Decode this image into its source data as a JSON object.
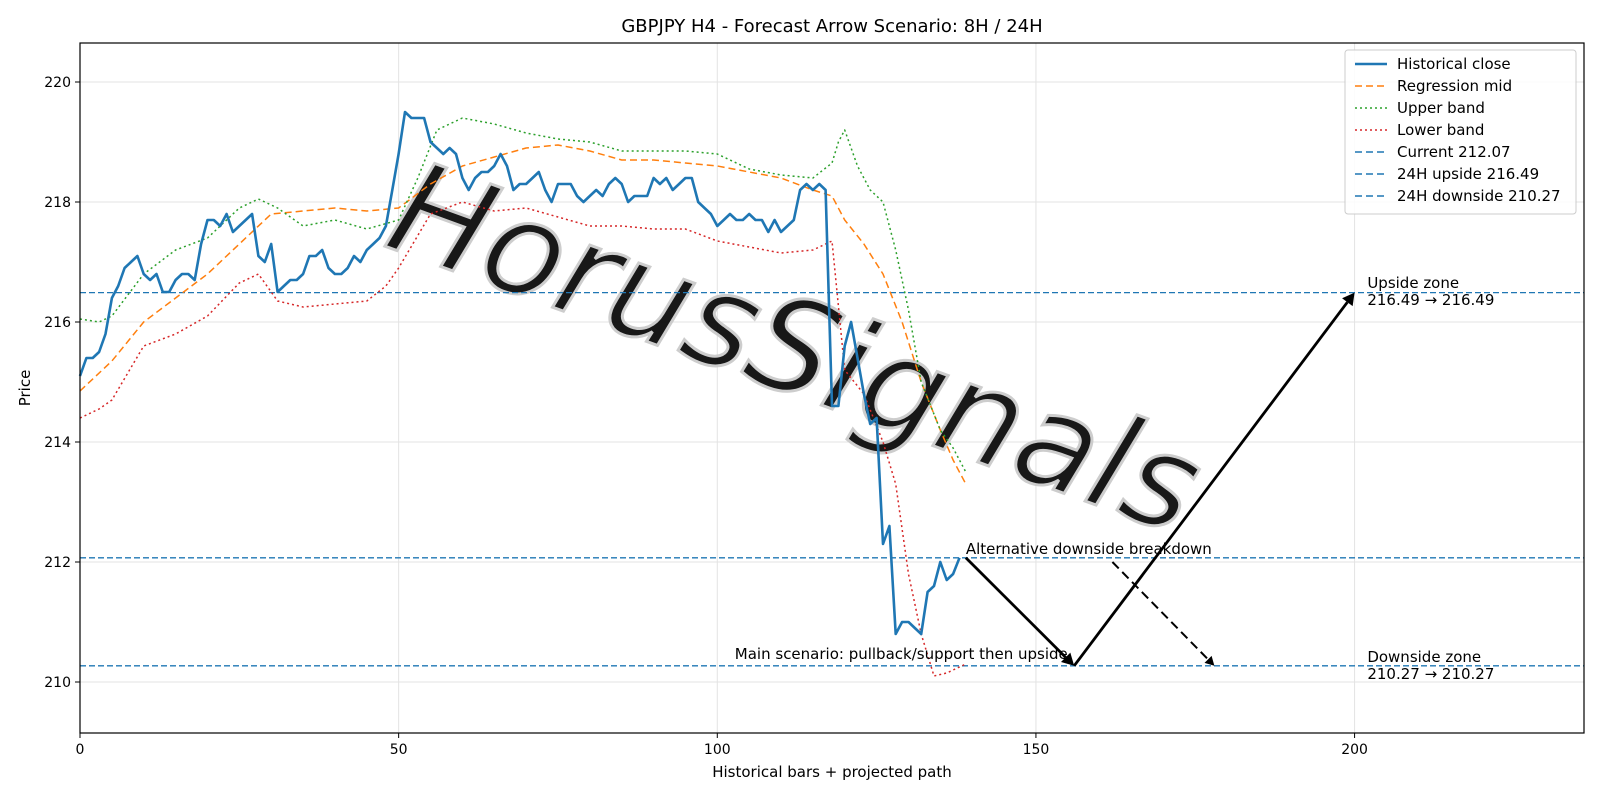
{
  "chart_data": {
    "type": "line",
    "title": "GBPJPY H4 - Forecast Arrow Scenario: 8H / 24H",
    "xlabel": "Historical bars + projected path",
    "ylabel": "Price",
    "xlim": [
      0,
      236
    ],
    "ylim": [
      209.15,
      220.65
    ],
    "xticks": [
      0,
      50,
      100,
      150,
      200
    ],
    "yticks": [
      210,
      212,
      214,
      216,
      218,
      220
    ],
    "grid": true,
    "legend_position": "top-right",
    "series": [
      {
        "name": "Historical close",
        "style": "solid",
        "color": "#1f77b4",
        "values": [
          215.1,
          215.4,
          215.4,
          215.5,
          215.8,
          216.4,
          216.6,
          216.9,
          217.0,
          217.1,
          216.8,
          216.7,
          216.8,
          216.5,
          216.5,
          216.7,
          216.8,
          216.8,
          216.7,
          217.3,
          217.7,
          217.7,
          217.6,
          217.8,
          217.5,
          217.6,
          217.7,
          217.8,
          217.1,
          217.0,
          217.3,
          216.5,
          216.6,
          216.7,
          216.7,
          216.8,
          217.1,
          217.1,
          217.2,
          216.9,
          216.8,
          216.8,
          216.9,
          217.1,
          217.0,
          217.2,
          217.3,
          217.4,
          217.6,
          218.2,
          218.8,
          219.5,
          219.4,
          219.4,
          219.4,
          219.0,
          218.9,
          218.8,
          218.9,
          218.8,
          218.4,
          218.2,
          218.4,
          218.5,
          218.5,
          218.6,
          218.8,
          218.6,
          218.2,
          218.3,
          218.3,
          218.4,
          218.5,
          218.2,
          218.0,
          218.3,
          218.3,
          218.3,
          218.1,
          218.0,
          218.1,
          218.2,
          218.1,
          218.3,
          218.4,
          218.3,
          218.0,
          218.1,
          218.1,
          218.1,
          218.4,
          218.3,
          218.4,
          218.2,
          218.3,
          218.4,
          218.4,
          218.0,
          217.9,
          217.8,
          217.6,
          217.7,
          217.8,
          217.7,
          217.7,
          217.8,
          217.7,
          217.7,
          217.5,
          217.7,
          217.5,
          217.6,
          217.7,
          218.2,
          218.3,
          218.2,
          218.3,
          218.2,
          214.6,
          214.6,
          215.6,
          216.0,
          215.4,
          214.8,
          214.3,
          214.4,
          212.3,
          212.6,
          210.8,
          211.0,
          211.0,
          210.9,
          210.8,
          211.5,
          211.6,
          212.0,
          211.7,
          211.8,
          212.07
        ],
        "start_x": 0
      },
      {
        "name": "Regression mid",
        "style": "dashed",
        "color": "#ff7f0e",
        "points": [
          [
            0,
            214.85
          ],
          [
            5,
            215.35
          ],
          [
            10,
            216.0
          ],
          [
            15,
            216.4
          ],
          [
            20,
            216.8
          ],
          [
            25,
            217.3
          ],
          [
            30,
            217.8
          ],
          [
            35,
            217.85
          ],
          [
            40,
            217.9
          ],
          [
            45,
            217.85
          ],
          [
            50,
            217.9
          ],
          [
            55,
            218.3
          ],
          [
            60,
            218.6
          ],
          [
            65,
            218.75
          ],
          [
            70,
            218.9
          ],
          [
            75,
            218.95
          ],
          [
            80,
            218.85
          ],
          [
            85,
            218.7
          ],
          [
            90,
            218.7
          ],
          [
            95,
            218.65
          ],
          [
            100,
            218.6
          ],
          [
            105,
            218.5
          ],
          [
            110,
            218.4
          ],
          [
            115,
            218.2
          ],
          [
            118,
            218.1
          ],
          [
            120,
            217.7
          ],
          [
            123,
            217.3
          ],
          [
            126,
            216.8
          ],
          [
            129,
            216.0
          ],
          [
            132,
            215.0
          ],
          [
            135,
            214.2
          ],
          [
            137,
            213.7
          ],
          [
            139,
            213.3
          ]
        ]
      },
      {
        "name": "Upper band",
        "style": "dotted",
        "color": "#2ca02c",
        "points": [
          [
            0,
            216.05
          ],
          [
            3,
            216.0
          ],
          [
            5,
            216.1
          ],
          [
            10,
            216.8
          ],
          [
            15,
            217.2
          ],
          [
            20,
            217.4
          ],
          [
            25,
            217.9
          ],
          [
            28,
            218.05
          ],
          [
            31,
            217.9
          ],
          [
            35,
            217.6
          ],
          [
            40,
            217.7
          ],
          [
            45,
            217.55
          ],
          [
            50,
            217.7
          ],
          [
            53,
            218.4
          ],
          [
            56,
            219.2
          ],
          [
            60,
            219.4
          ],
          [
            65,
            219.3
          ],
          [
            70,
            219.15
          ],
          [
            75,
            219.05
          ],
          [
            80,
            219.0
          ],
          [
            85,
            218.85
          ],
          [
            90,
            218.85
          ],
          [
            95,
            218.85
          ],
          [
            100,
            218.8
          ],
          [
            105,
            218.55
          ],
          [
            110,
            218.45
          ],
          [
            115,
            218.4
          ],
          [
            118,
            218.65
          ],
          [
            119,
            219.0
          ],
          [
            120,
            219.2
          ],
          [
            122,
            218.6
          ],
          [
            124,
            218.2
          ],
          [
            126,
            218.0
          ],
          [
            128,
            217.2
          ],
          [
            130,
            216.2
          ],
          [
            132,
            215.0
          ],
          [
            135,
            214.2
          ],
          [
            137,
            213.9
          ],
          [
            139,
            213.5
          ]
        ]
      },
      {
        "name": "Lower band",
        "style": "dotted",
        "color": "#d62728",
        "points": [
          [
            0,
            214.4
          ],
          [
            3,
            214.55
          ],
          [
            5,
            214.7
          ],
          [
            10,
            215.6
          ],
          [
            15,
            215.8
          ],
          [
            20,
            216.1
          ],
          [
            25,
            216.65
          ],
          [
            28,
            216.8
          ],
          [
            31,
            216.35
          ],
          [
            35,
            216.25
          ],
          [
            40,
            216.3
          ],
          [
            45,
            216.35
          ],
          [
            48,
            216.6
          ],
          [
            50,
            216.9
          ],
          [
            55,
            217.8
          ],
          [
            60,
            218.0
          ],
          [
            65,
            217.85
          ],
          [
            70,
            217.9
          ],
          [
            75,
            217.75
          ],
          [
            80,
            217.6
          ],
          [
            85,
            217.6
          ],
          [
            90,
            217.55
          ],
          [
            95,
            217.55
          ],
          [
            100,
            217.35
          ],
          [
            105,
            217.25
          ],
          [
            110,
            217.15
          ],
          [
            115,
            217.2
          ],
          [
            118,
            217.35
          ],
          [
            120,
            215.2
          ],
          [
            123,
            214.8
          ],
          [
            126,
            214.0
          ],
          [
            128,
            213.3
          ],
          [
            130,
            211.8
          ],
          [
            132,
            210.8
          ],
          [
            134,
            210.1
          ],
          [
            136,
            210.15
          ],
          [
            139,
            210.3
          ]
        ]
      }
    ],
    "horizontal_lines": [
      {
        "name": "Current 212.07",
        "value": 212.07,
        "style": "dashed",
        "color": "#1f77b4"
      },
      {
        "name": "24H upside 216.49",
        "value": 216.49,
        "style": "dashed",
        "color": "#1f77b4"
      },
      {
        "name": "24H downside 210.27",
        "value": 210.27,
        "style": "dashed",
        "color": "#1f77b4"
      }
    ],
    "arrows": [
      {
        "from": [
          139,
          212.07
        ],
        "to": [
          156,
          210.27
        ],
        "style": "solid"
      },
      {
        "from": [
          156,
          210.27
        ],
        "to": [
          200,
          216.49
        ],
        "style": "solid"
      },
      {
        "from": [
          162,
          212.0
        ],
        "to": [
          178,
          210.27
        ],
        "style": "dashed"
      }
    ],
    "annotations": [
      {
        "text": "Alternative downside breakdown",
        "x": 139,
        "y": 212.1
      },
      {
        "text": "Main scenario: pullback/support then upside",
        "x": 155,
        "y": 210.35,
        "align": "end"
      },
      {
        "line1": "Upside zone",
        "line2": "216.49 → 216.49",
        "x": 202,
        "y": 216.5
      },
      {
        "line1": "Downside zone",
        "line2": "210.27 → 210.27",
        "x": 202,
        "y": 210.27
      }
    ],
    "watermark": "HorusSignals"
  }
}
